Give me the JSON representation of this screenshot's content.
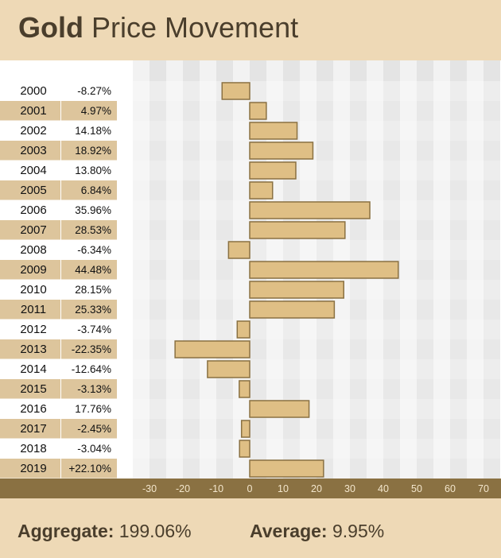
{
  "header": {
    "title_bold": "Gold",
    "title_rest": "Price Movement"
  },
  "footer": {
    "aggregate_label": "Aggregate:",
    "aggregate_value": "199.06%",
    "average_label": "Average:",
    "average_value": "9.95%"
  },
  "colors": {
    "background": "#eed9b6",
    "bar_fill": "#dfbf85",
    "bar_stroke": "#8a7142",
    "axis_band": "#8a7142",
    "row_stripe_highlight": "#ddc59c",
    "plot_column_light": "#f2f2f2",
    "plot_column_dark": "#e4e4e4",
    "text": "#4a3e2c"
  },
  "chart_data": {
    "type": "bar",
    "orientation": "horizontal",
    "categories": [
      "2000",
      "2001",
      "2002",
      "2003",
      "2004",
      "2005",
      "2006",
      "2007",
      "2008",
      "2009",
      "2010",
      "2011",
      "2012",
      "2013",
      "2014",
      "2015",
      "2016",
      "2017",
      "2018",
      "2019"
    ],
    "value_labels": [
      "-8.27%",
      "4.97%",
      "14.18%",
      "18.92%",
      "13.80%",
      "6.84%",
      "35.96%",
      "28.53%",
      "-6.34%",
      "44.48%",
      "28.15%",
      "25.33%",
      "-3.74%",
      "-22.35%",
      "-12.64%",
      "-3.13%",
      "17.76%",
      "-2.45%",
      "-3.04%",
      "+22.10%"
    ],
    "values": [
      -8.27,
      4.97,
      14.18,
      18.92,
      13.8,
      6.84,
      35.96,
      28.53,
      -6.34,
      44.48,
      28.15,
      25.33,
      -3.74,
      -22.35,
      -12.64,
      -3.13,
      17.76,
      -2.45,
      -3.04,
      22.1
    ],
    "xlim": [
      -35,
      75
    ],
    "xticks": [
      -30,
      -20,
      -10,
      0,
      10,
      20,
      30,
      40,
      50,
      60,
      70
    ],
    "grid": "alternating vertical bands"
  }
}
